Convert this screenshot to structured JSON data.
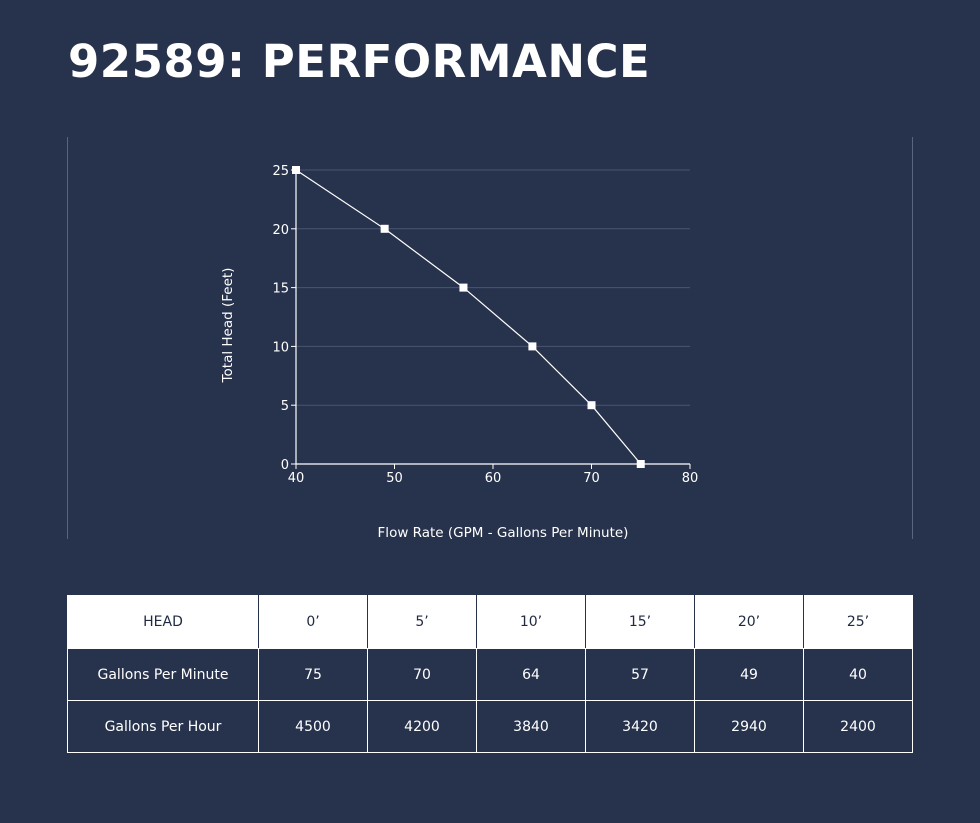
{
  "page_title": "92589: PERFORMANCE",
  "colors": {
    "background": "#27324c",
    "foreground": "#ffffff",
    "grid": "#4a5572"
  },
  "chart_data": {
    "type": "line",
    "title": "",
    "xlabel": "Flow Rate (GPM - Gallons Per Minute)",
    "ylabel": "Total Head (Feet)",
    "xlim": [
      40,
      80
    ],
    "ylim": [
      0,
      25
    ],
    "x_ticks": [
      40,
      50,
      60,
      70,
      80
    ],
    "y_ticks": [
      0,
      5,
      10,
      15,
      20,
      25
    ],
    "grid": "horizontal",
    "marker": "square",
    "series": [
      {
        "x": [
          40,
          49,
          57,
          64,
          70,
          75
        ],
        "y": [
          25,
          20,
          15,
          10,
          5,
          0
        ]
      }
    ]
  },
  "table": {
    "header": [
      "HEAD",
      "0’",
      "5’",
      "10’",
      "15’",
      "20’",
      "25’"
    ],
    "rows": [
      [
        "Gallons Per Minute",
        "75",
        "70",
        "64",
        "57",
        "49",
        "40"
      ],
      [
        "Gallons Per Hour",
        "4500",
        "4200",
        "3840",
        "3420",
        "2940",
        "2400"
      ]
    ]
  }
}
